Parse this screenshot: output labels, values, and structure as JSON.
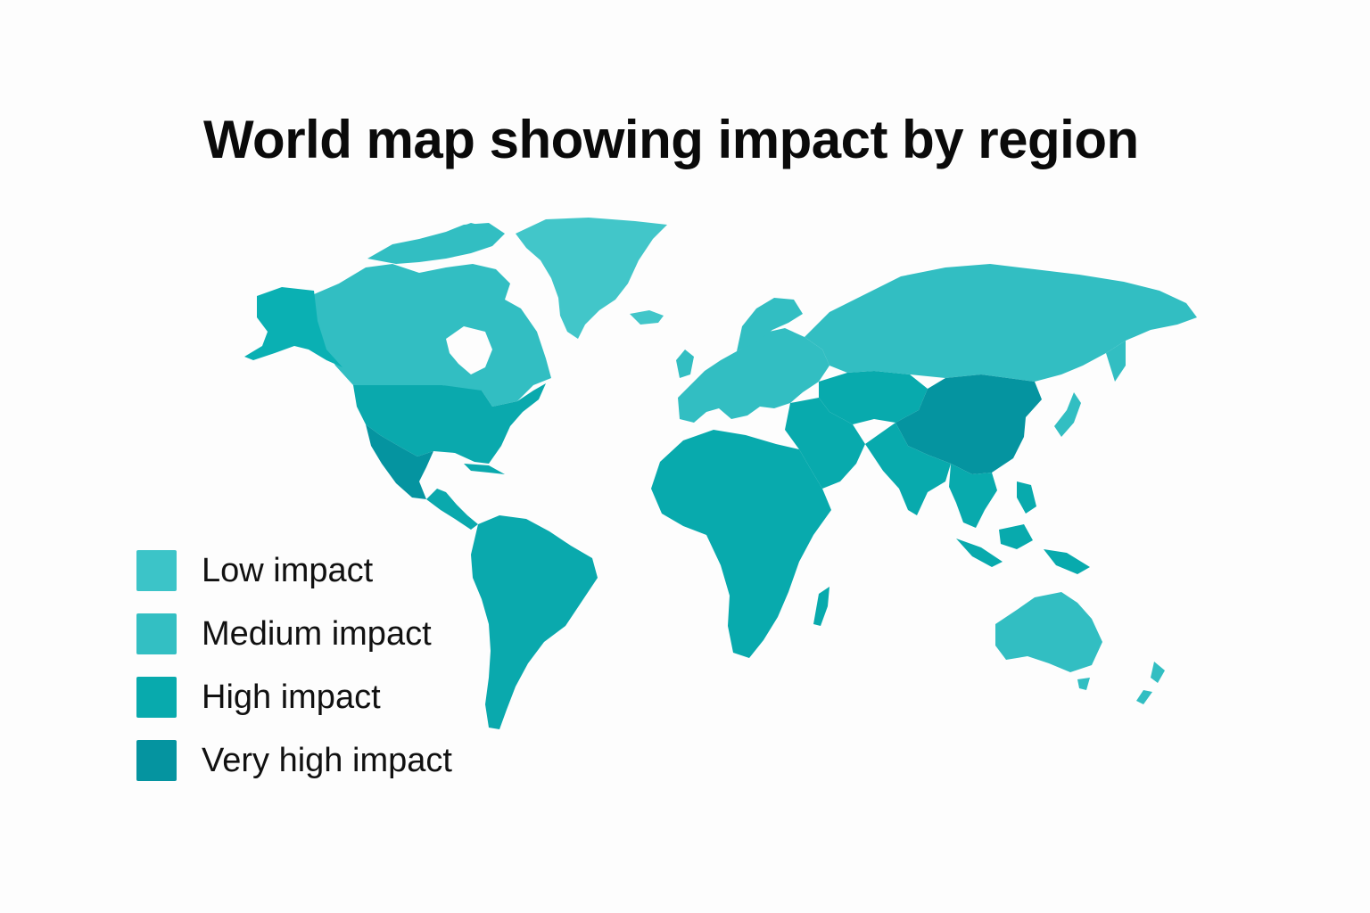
{
  "title": "World map showing impact by region",
  "legend": [
    {
      "label": "Low impact",
      "color": "#3cc4c8"
    },
    {
      "label": "Medium impact",
      "color": "#33bfc3"
    },
    {
      "label": "High impact",
      "color": "#08aaad"
    },
    {
      "label": "Very high impact",
      "color": "#0594a0"
    }
  ],
  "regions": [
    {
      "name": "Greenland",
      "impact": "Low impact"
    },
    {
      "name": "Canada",
      "impact": "Medium impact"
    },
    {
      "name": "Alaska",
      "impact": "High impact"
    },
    {
      "name": "United States",
      "impact": "High impact"
    },
    {
      "name": "Mexico",
      "impact": "Very high impact"
    },
    {
      "name": "Central America",
      "impact": "High impact"
    },
    {
      "name": "South America",
      "impact": "High impact"
    },
    {
      "name": "Europe",
      "impact": "Medium impact"
    },
    {
      "name": "Russia",
      "impact": "Medium impact"
    },
    {
      "name": "Africa",
      "impact": "High impact"
    },
    {
      "name": "Middle East",
      "impact": "High impact"
    },
    {
      "name": "Central Asia",
      "impact": "High impact"
    },
    {
      "name": "South Asia",
      "impact": "High impact"
    },
    {
      "name": "China",
      "impact": "Very high impact"
    },
    {
      "name": "Southeast Asia",
      "impact": "High impact"
    },
    {
      "name": "Japan",
      "impact": "Medium impact"
    },
    {
      "name": "Madagascar",
      "impact": "High impact"
    },
    {
      "name": "Australia",
      "impact": "Medium impact"
    },
    {
      "name": "New Zealand",
      "impact": "Medium impact"
    }
  ]
}
